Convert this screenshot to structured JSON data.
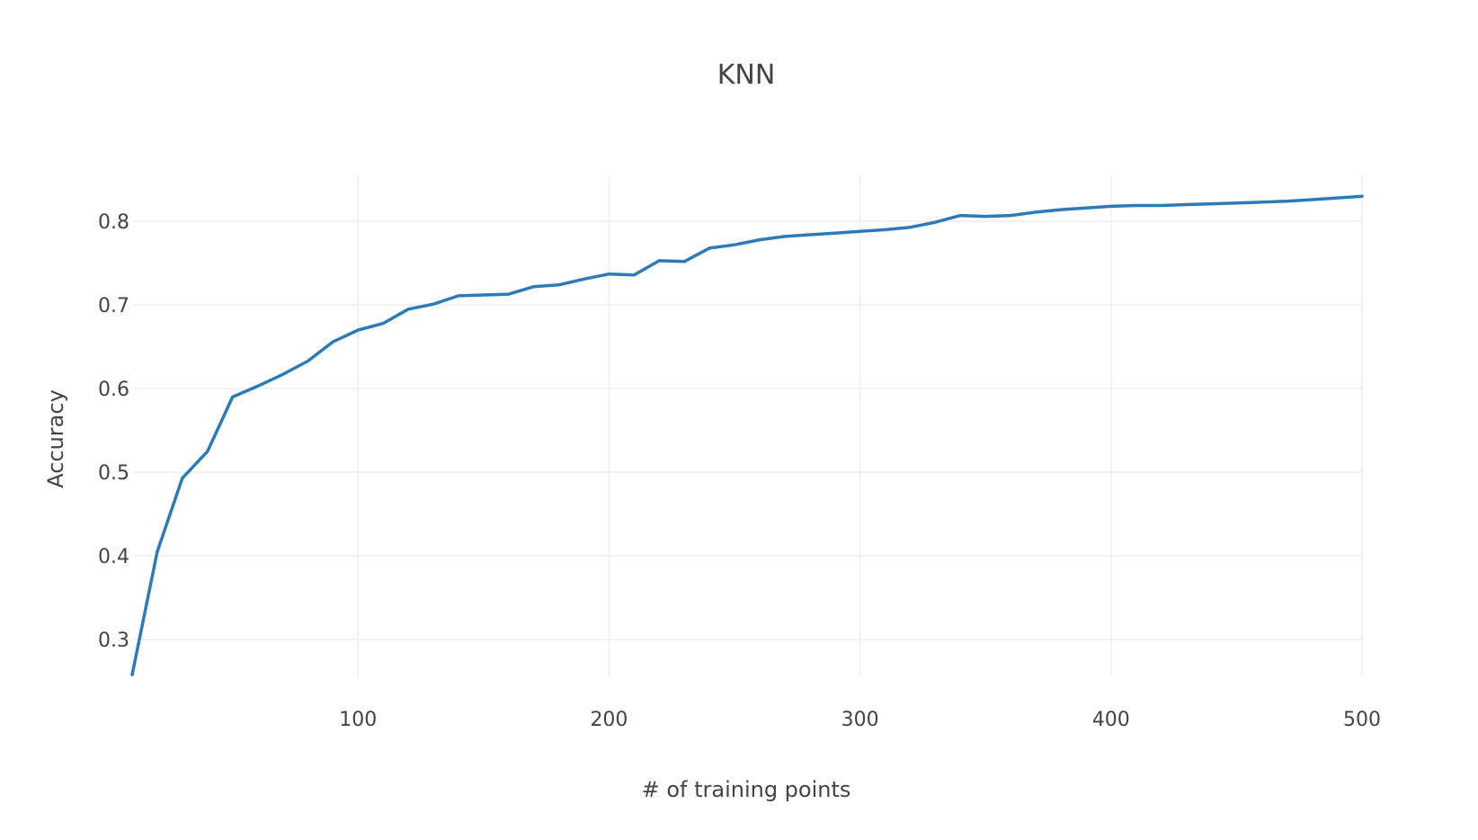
{
  "chart_data": {
    "type": "line",
    "title": "KNN",
    "xlabel": "# of training points",
    "ylabel": "Accuracy",
    "xlim": [
      10,
      500
    ],
    "ylim": [
      0.255,
      0.855
    ],
    "xticks": [
      100,
      200,
      300,
      400,
      500
    ],
    "yticks": [
      0.3,
      0.4,
      0.5,
      0.6,
      0.7,
      0.8
    ],
    "xtick_labels": [
      "100",
      "200",
      "300",
      "400",
      "500"
    ],
    "ytick_labels": [
      "0.3",
      "0.4",
      "0.5",
      "0.6",
      "0.7",
      "0.8"
    ],
    "grid": true,
    "legend": "none",
    "colors": {
      "line": "#2c7bb6",
      "grid": "#eeeeee",
      "text": "#444444"
    },
    "series": [
      {
        "x": [
          10,
          20,
          30,
          40,
          50,
          60,
          70,
          80,
          90,
          100,
          110,
          120,
          130,
          140,
          150,
          160,
          170,
          180,
          190,
          200,
          210,
          220,
          230,
          240,
          250,
          260,
          270,
          280,
          290,
          300,
          310,
          320,
          330,
          340,
          350,
          360,
          370,
          380,
          390,
          400,
          410,
          420,
          430,
          440,
          450,
          460,
          470,
          480,
          490,
          500
        ],
        "values": [
          0.258,
          0.405,
          0.493,
          0.525,
          0.59,
          0.603,
          0.617,
          0.633,
          0.656,
          0.67,
          0.678,
          0.695,
          0.701,
          0.711,
          0.712,
          0.713,
          0.722,
          0.724,
          0.731,
          0.737,
          0.736,
          0.753,
          0.752,
          0.768,
          0.772,
          0.778,
          0.782,
          0.784,
          0.786,
          0.788,
          0.79,
          0.793,
          0.799,
          0.807,
          0.806,
          0.807,
          0.811,
          0.814,
          0.816,
          0.818,
          0.819,
          0.819,
          0.82,
          0.821,
          0.822,
          0.823,
          0.824,
          0.826,
          0.828,
          0.83
        ]
      }
    ]
  }
}
